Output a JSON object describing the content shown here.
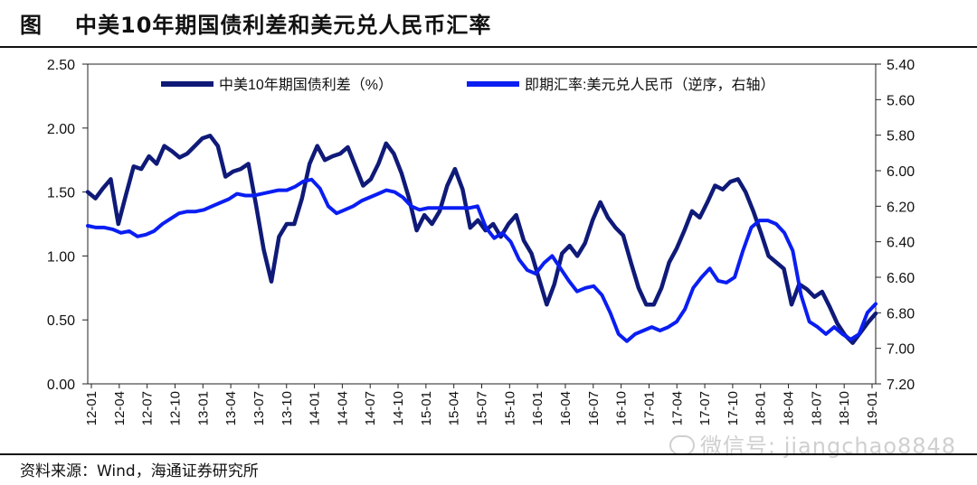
{
  "header": {
    "lead": "图",
    "title": "中美10年期国债利差和美元兑人民币汇率"
  },
  "source": "资料来源：Wind，海通证券研究所",
  "watermark": "微信号: jiangchao8848",
  "chart_data": {
    "type": "line",
    "title": "中美10年期国债利差和美元兑人民币汇率",
    "x_ticks": [
      "12-01",
      "12-04",
      "12-07",
      "12-10",
      "13-01",
      "13-04",
      "13-07",
      "13-10",
      "14-01",
      "14-04",
      "14-07",
      "14-10",
      "15-01",
      "15-04",
      "15-07",
      "15-10",
      "16-01",
      "16-04",
      "16-07",
      "16-10",
      "17-01",
      "17-04",
      "17-07",
      "17-10",
      "18-01",
      "18-04",
      "18-07",
      "18-10",
      "19-01"
    ],
    "y_left": {
      "min": 0.0,
      "max": 2.5,
      "ticks": [
        "0.00",
        "0.50",
        "1.00",
        "1.50",
        "2.00",
        "2.50"
      ]
    },
    "y_right": {
      "min": 5.4,
      "max": 7.2,
      "inverted": true,
      "ticks": [
        "5.40",
        "5.60",
        "5.80",
        "6.00",
        "6.20",
        "6.40",
        "6.60",
        "6.80",
        "7.00",
        "7.20"
      ]
    },
    "legend_position": "top",
    "series": [
      {
        "name": "中美10年期国债利差（%）",
        "axis": "left",
        "color": "#0f1a78",
        "values": [
          1.5,
          1.45,
          1.53,
          1.6,
          1.25,
          1.48,
          1.7,
          1.68,
          1.78,
          1.72,
          1.86,
          1.82,
          1.77,
          1.8,
          1.86,
          1.92,
          1.94,
          1.86,
          1.62,
          1.66,
          1.68,
          1.72,
          1.4,
          1.05,
          0.8,
          1.15,
          1.25,
          1.25,
          1.45,
          1.72,
          1.86,
          1.75,
          1.78,
          1.8,
          1.85,
          1.7,
          1.55,
          1.6,
          1.72,
          1.88,
          1.8,
          1.65,
          1.45,
          1.2,
          1.32,
          1.25,
          1.35,
          1.55,
          1.68,
          1.52,
          1.22,
          1.28,
          1.2,
          1.25,
          1.15,
          1.25,
          1.32,
          1.12,
          1.02,
          0.82,
          0.62,
          0.78,
          1.02,
          1.08,
          1.0,
          1.1,
          1.28,
          1.42,
          1.3,
          1.22,
          1.16,
          0.95,
          0.75,
          0.62,
          0.62,
          0.75,
          0.95,
          1.06,
          1.2,
          1.35,
          1.3,
          1.42,
          1.55,
          1.52,
          1.58,
          1.6,
          1.5,
          1.35,
          1.18,
          1.0,
          0.95,
          0.9,
          0.62,
          0.78,
          0.74,
          0.68,
          0.72,
          0.6,
          0.47,
          0.38,
          0.32,
          0.4,
          0.48,
          0.55
        ]
      },
      {
        "name": "即期汇率:美元兑人民币（逆序，右轴）",
        "axis": "right",
        "color": "#0a1ef2",
        "values": [
          6.31,
          6.32,
          6.32,
          6.33,
          6.35,
          6.34,
          6.37,
          6.36,
          6.34,
          6.3,
          6.27,
          6.24,
          6.23,
          6.23,
          6.22,
          6.2,
          6.18,
          6.16,
          6.13,
          6.14,
          6.14,
          6.13,
          6.12,
          6.11,
          6.11,
          6.09,
          6.06,
          6.05,
          6.1,
          6.2,
          6.24,
          6.22,
          6.2,
          6.17,
          6.15,
          6.13,
          6.11,
          6.12,
          6.15,
          6.2,
          6.22,
          6.21,
          6.21,
          6.21,
          6.21,
          6.21,
          6.21,
          6.2,
          6.32,
          6.38,
          6.35,
          6.4,
          6.5,
          6.56,
          6.58,
          6.52,
          6.48,
          6.55,
          6.62,
          6.68,
          6.66,
          6.65,
          6.7,
          6.8,
          6.92,
          6.96,
          6.92,
          6.9,
          6.88,
          6.9,
          6.88,
          6.85,
          6.78,
          6.66,
          6.6,
          6.55,
          6.62,
          6.63,
          6.6,
          6.45,
          6.32,
          6.28,
          6.28,
          6.3,
          6.35,
          6.45,
          6.7,
          6.85,
          6.88,
          6.92,
          6.88,
          6.92,
          6.95,
          6.92,
          6.8,
          6.75
        ]
      }
    ]
  }
}
